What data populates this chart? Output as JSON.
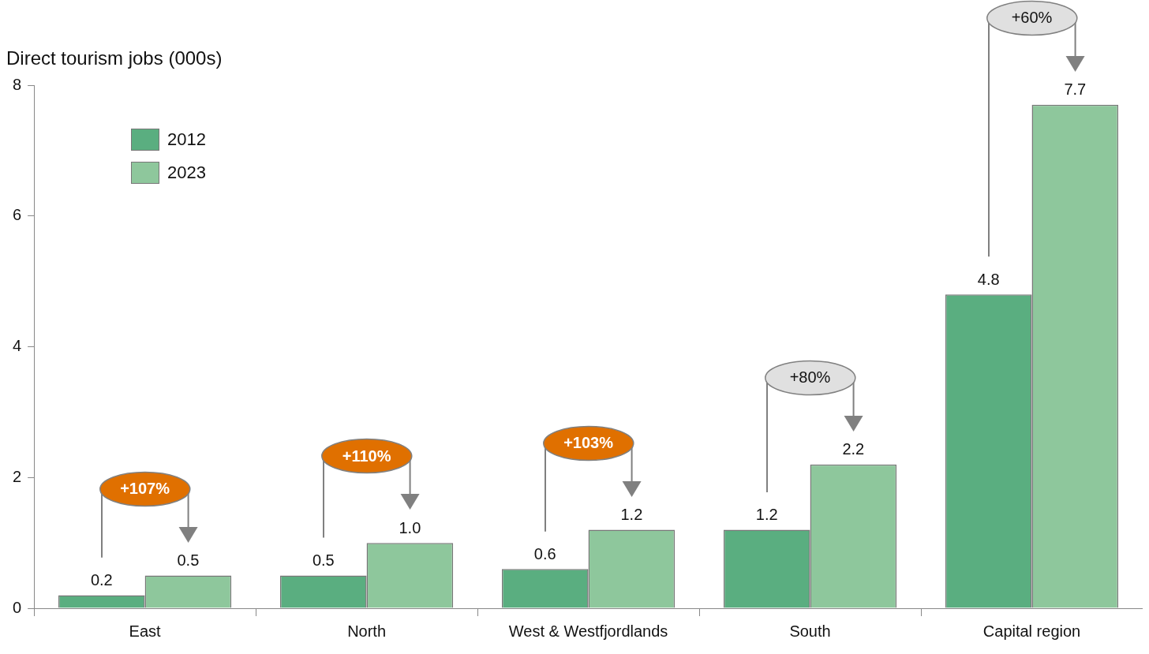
{
  "chart_data": {
    "type": "bar",
    "ylabel": "Direct tourism jobs (000s)",
    "categories": [
      "East",
      "North",
      "West & Westfjordlands",
      "South",
      "Capital region"
    ],
    "series": [
      {
        "name": "2012",
        "color": "#5aae80",
        "values": [
          0.2,
          0.5,
          0.6,
          1.2,
          4.8
        ],
        "value_labels": [
          "0.2",
          "0.5",
          "0.6",
          "1.2",
          "4.8"
        ]
      },
      {
        "name": "2023",
        "color": "#8ec79c",
        "values": [
          0.5,
          1.0,
          1.2,
          2.2,
          7.7
        ],
        "value_labels": [
          "0.5",
          "1.0",
          "1.2",
          "2.2",
          "7.7"
        ]
      }
    ],
    "ylim": [
      0,
      8
    ],
    "yticks": [
      0,
      2,
      4,
      6,
      8
    ],
    "grid": false,
    "legend": "top left",
    "annotations": [
      "+107%",
      "+110%",
      "+103%",
      "+80%",
      "+60%"
    ]
  }
}
